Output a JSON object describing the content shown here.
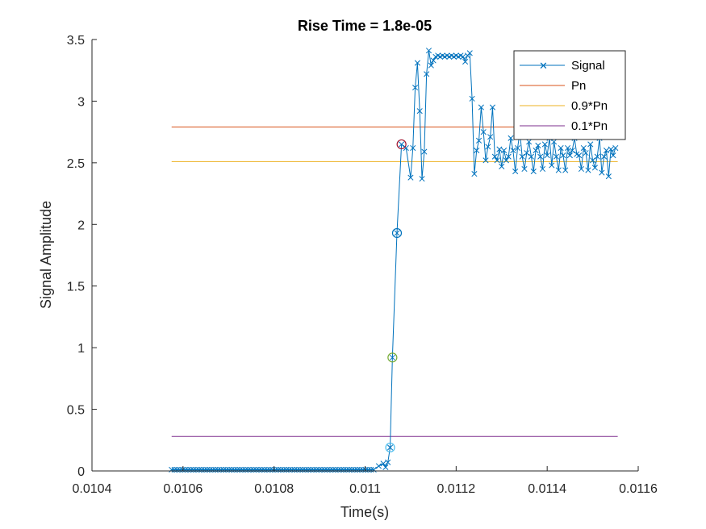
{
  "chart_data": {
    "type": "line",
    "title": "Rise Time = 1.8e-05",
    "xlabel": "Time(s)",
    "ylabel": "Signal Amplitude",
    "xlim": [
      0.0104,
      0.0116
    ],
    "ylim": [
      0,
      3.5
    ],
    "x_ticks": [
      "0.0104",
      "0.0106",
      "0.0108",
      "0.011",
      "0.0112",
      "0.0114",
      "0.0116"
    ],
    "y_ticks": [
      "0",
      "0.5",
      "1",
      "1.5",
      "2",
      "2.5",
      "3",
      "3.5"
    ],
    "grid": false,
    "legend_position": "top-right",
    "colors": {
      "signal": "#0072BD",
      "pn": "#D95319",
      "pn90": "#EDB120",
      "pn10": "#7E2F8E",
      "marker_green": "#77AC30",
      "marker_cyan": "#4DBEEE",
      "marker_red": "#A2142F"
    },
    "series": [
      {
        "name": "Signal",
        "style": "line-x",
        "low_segment": {
          "x_start": 0.010575,
          "x_end": 0.01102,
          "step": 6e-06,
          "y": 0.01
        },
        "x": [
          0.01103,
          0.01104,
          0.011045,
          0.01105,
          0.011055,
          0.01106,
          0.01107,
          0.01108,
          0.01109,
          0.0111,
          0.011105,
          0.01111,
          0.011115,
          0.01112,
          0.011125,
          0.01113,
          0.011135,
          0.01114,
          0.011145,
          0.01115,
          0.011155,
          0.01116,
          0.011165,
          0.01117,
          0.011175,
          0.01118,
          0.011185,
          0.01119,
          0.011195,
          0.0112,
          0.011205,
          0.01121,
          0.011215,
          0.01122,
          0.011225,
          0.01123,
          0.011235,
          0.01124,
          0.011245,
          0.01125,
          0.011255,
          0.01126,
          0.011265,
          0.01127,
          0.011275,
          0.01128,
          0.011285,
          0.01129,
          0.011295,
          0.0113,
          0.011305,
          0.01131,
          0.011315,
          0.01132,
          0.011325,
          0.01133,
          0.011335,
          0.01134,
          0.011345,
          0.01135,
          0.011355,
          0.01136,
          0.011365,
          0.01137,
          0.011375,
          0.01138,
          0.011385,
          0.01139,
          0.011395,
          0.0114,
          0.011405,
          0.01141,
          0.011415,
          0.01142,
          0.011425,
          0.01143,
          0.011435,
          0.01144,
          0.011445,
          0.01145,
          0.011455,
          0.01146,
          0.011465,
          0.01147,
          0.011475,
          0.01148,
          0.011485,
          0.01149,
          0.011495,
          0.0115,
          0.011505,
          0.01151,
          0.011515,
          0.01152,
          0.011525,
          0.01153,
          0.011535,
          0.01154,
          0.011545,
          0.01155
        ],
        "y": [
          0.04,
          0.06,
          0.03,
          0.07,
          0.19,
          0.92,
          1.93,
          2.65,
          2.62,
          2.38,
          2.62,
          3.11,
          3.31,
          2.92,
          2.37,
          2.59,
          3.22,
          3.41,
          3.29,
          3.33,
          3.36,
          3.37,
          3.36,
          3.37,
          3.36,
          3.37,
          3.36,
          3.37,
          3.36,
          3.37,
          3.36,
          3.37,
          3.36,
          3.32,
          3.37,
          3.39,
          3.02,
          2.41,
          2.6,
          2.68,
          2.95,
          2.75,
          2.52,
          2.63,
          2.71,
          2.95,
          2.55,
          2.52,
          2.61,
          2.47,
          2.6,
          2.52,
          2.55,
          2.7,
          2.6,
          2.43,
          2.62,
          2.75,
          2.55,
          2.45,
          2.58,
          2.67,
          2.55,
          2.43,
          2.6,
          2.64,
          2.55,
          2.45,
          2.65,
          2.56,
          2.7,
          2.48,
          2.67,
          2.55,
          2.44,
          2.62,
          2.56,
          2.44,
          2.62,
          2.56,
          2.6,
          2.7,
          2.57,
          2.56,
          2.45,
          2.62,
          2.58,
          2.44,
          2.65,
          2.52,
          2.46,
          2.55,
          2.7,
          2.42,
          2.55,
          2.6,
          2.39,
          2.61,
          2.56,
          2.62
        ]
      },
      {
        "name": "Pn",
        "style": "hline",
        "y": 2.79,
        "x_range": [
          0.010575,
          0.011555
        ]
      },
      {
        "name": "0.9*Pn",
        "style": "hline",
        "y": 2.51,
        "x_range": [
          0.010575,
          0.011555
        ]
      },
      {
        "name": "0.1*Pn",
        "style": "hline",
        "y": 0.28,
        "x_range": [
          0.010575,
          0.011555
        ]
      }
    ],
    "markers": [
      {
        "x": 0.011055,
        "y": 0.19,
        "color": "#4DBEEE"
      },
      {
        "x": 0.01106,
        "y": 0.92,
        "color": "#77AC30"
      },
      {
        "x": 0.01107,
        "y": 1.93,
        "color": "#0072BD"
      },
      {
        "x": 0.01108,
        "y": 2.65,
        "color": "#A2142F"
      }
    ]
  }
}
